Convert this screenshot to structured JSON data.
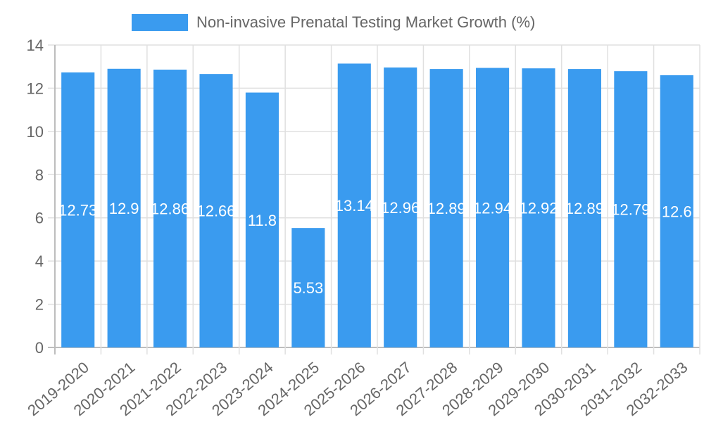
{
  "legend": {
    "label": "Non-invasive Prenatal Testing Market Growth (%)",
    "color": "#3a9bef"
  },
  "chart_data": {
    "type": "bar",
    "title": "",
    "xlabel": "",
    "ylabel": "",
    "ylim": [
      0,
      14
    ],
    "yticks": [
      0,
      2,
      4,
      6,
      8,
      10,
      12,
      14
    ],
    "grid": true,
    "legend_position": "top",
    "categories": [
      "2019-2020",
      "2020-2021",
      "2021-2022",
      "2022-2023",
      "2023-2024",
      "2024-2025",
      "2025-2026",
      "2026-2027",
      "2027-2028",
      "2028-2029",
      "2029-2030",
      "2030-2031",
      "2031-2032",
      "2032-2033"
    ],
    "series": [
      {
        "name": "Non-invasive Prenatal Testing Market Growth (%)",
        "color": "#3a9bef",
        "values": [
          12.73,
          12.9,
          12.86,
          12.66,
          11.8,
          5.53,
          13.14,
          12.96,
          12.89,
          12.94,
          12.92,
          12.89,
          12.79,
          12.6
        ],
        "labels": [
          "12.73",
          "12.9",
          "12.86",
          "12.66",
          "11.8",
          "5.53",
          "13.14",
          "12.96",
          "12.89",
          "12.94",
          "12.92",
          "12.89",
          "12.79",
          "12.6"
        ]
      }
    ]
  }
}
